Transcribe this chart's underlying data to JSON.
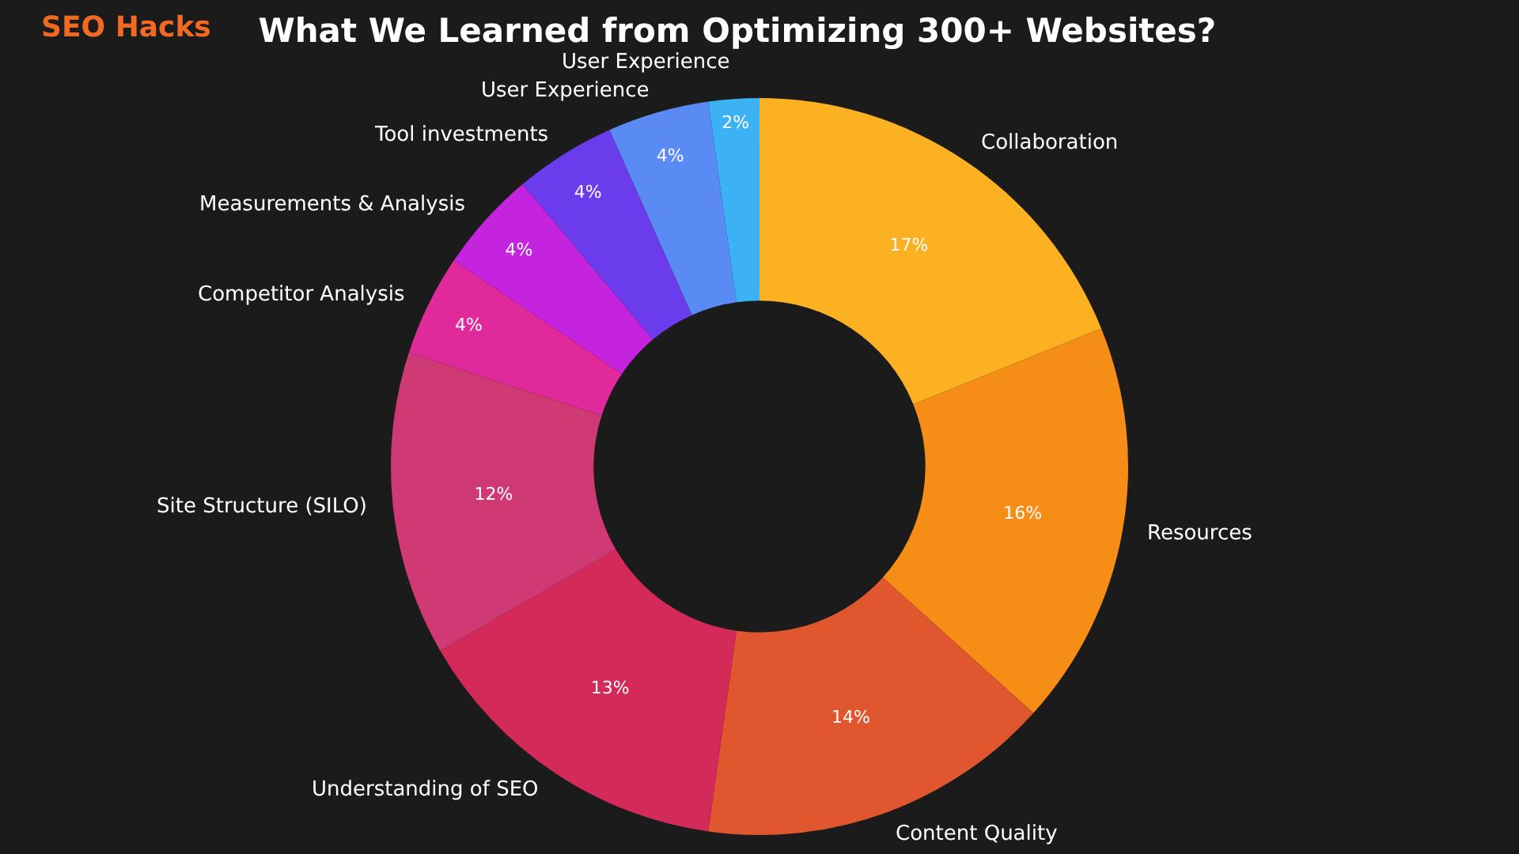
{
  "chart_data": {
    "type": "donut",
    "title": "What We Learned from Optimizing 300+ Websites?",
    "subtitle": "SEO Hacks",
    "categories": [
      "Collaboration",
      "Resources",
      "Content Quality",
      "Understanding of SEO",
      "Site Structure (SILO)",
      "Competitor Analysis",
      "Measurements & Analysis",
      "Tool investments",
      "User Experience",
      "User Experience"
    ],
    "values": [
      17,
      16,
      14,
      13,
      12,
      4,
      4,
      4,
      4,
      2
    ],
    "value_labels": [
      "17%",
      "16%",
      "14%",
      "13%",
      "12%",
      "4%",
      "4%",
      "4%",
      "4%",
      "2%"
    ],
    "colors": [
      "#fbb121",
      "#f58d17",
      "#e0562f",
      "#d42a5a",
      "#cf3a74",
      "#e02a9c",
      "#c424de",
      "#6a3cec",
      "#5a8af3",
      "#3cb2f5"
    ],
    "legend": false
  }
}
